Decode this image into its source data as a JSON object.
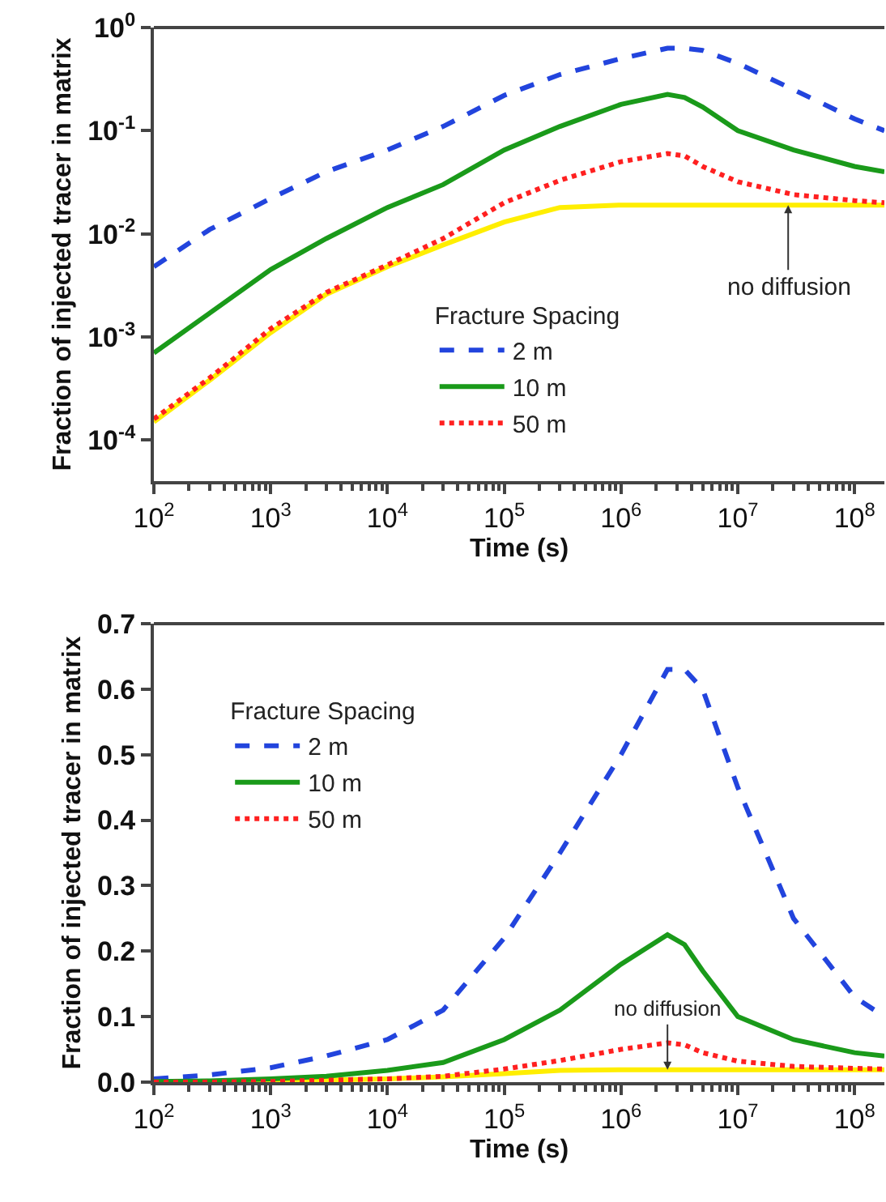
{
  "chart_data": [
    {
      "type": "line",
      "xlabel": "Time (s)",
      "ylabel": "Fraction of injected tracer in matrix",
      "log": "xy",
      "legend": "bottom",
      "legend_title": "Fracture Spacing",
      "xlim": [
        100,
        180000000
      ],
      "xticks": [
        {
          "value": 100,
          "label": "10$^{2}$"
        },
        {
          "value": 1000,
          "label": "10$^{3}$"
        },
        {
          "value": 10000,
          "label": "10$^{4}$"
        },
        {
          "value": 100000,
          "label": "10$^{5}$"
        },
        {
          "value": 1000000,
          "label": "10$^{6}$"
        },
        {
          "value": 10000000,
          "label": "10$^{7}$"
        },
        {
          "value": 100000000,
          "label": "10$^{8}$"
        }
      ],
      "ylim": [
        4e-05,
        1
      ],
      "yticks": [
        {
          "value": 0.0001,
          "label": "10$^{-4}$"
        },
        {
          "value": 0.001,
          "label": "10$^{-3}$"
        },
        {
          "value": 0.01,
          "label": "10$^{-2}$"
        },
        {
          "value": 0.1,
          "label": "10$^{-1}$"
        },
        {
          "value": 1,
          "label": "10$^{0}$"
        }
      ],
      "x": [
        100,
        300,
        1000,
        3000,
        10000,
        30000,
        100000,
        300000,
        1000000,
        2500000,
        3500000,
        5000000,
        10000000,
        30000000,
        100000000,
        180000000
      ],
      "series": [
        {
          "color": "#ffee00",
          "line_style": "solid",
          "values": [
            0.00015,
            0.00038,
            0.0011,
            0.0026,
            0.0048,
            0.0078,
            0.013,
            0.018,
            0.019,
            0.019,
            0.019,
            0.019,
            0.019,
            0.019,
            0.019,
            0.019
          ]
        },
        {
          "name": "2 m",
          "color": "#2244dd",
          "line_style": "dashed",
          "values": [
            0.0048,
            0.011,
            0.022,
            0.04,
            0.065,
            0.11,
            0.22,
            0.35,
            0.5,
            0.63,
            0.63,
            0.6,
            0.45,
            0.25,
            0.13,
            0.1
          ]
        },
        {
          "name": "10 m",
          "color": "#1a9a1a",
          "line_style": "solid",
          "values": [
            0.0007,
            0.0017,
            0.0045,
            0.009,
            0.018,
            0.03,
            0.065,
            0.11,
            0.18,
            0.225,
            0.21,
            0.17,
            0.1,
            0.065,
            0.045,
            0.04
          ]
        },
        {
          "name": "50 m",
          "color": "#ff2020",
          "line_style": "dotted",
          "values": [
            0.00016,
            0.0004,
            0.0012,
            0.0027,
            0.005,
            0.009,
            0.02,
            0.033,
            0.05,
            0.06,
            0.057,
            0.045,
            0.032,
            0.024,
            0.021,
            0.02
          ]
        }
      ],
      "annotations": [
        {
          "text": "no diffusion",
          "x": 27000000,
          "y": 0.019
        }
      ]
    },
    {
      "type": "line",
      "xlabel": "Time (s)",
      "ylabel": "Fraction of injected tracer in matrix",
      "log": "x",
      "legend": "top left",
      "legend_title": "Fracture Spacing",
      "xlim": [
        100,
        180000000
      ],
      "xticks": [
        {
          "value": 100,
          "label": "10$^{2}$"
        },
        {
          "value": 1000,
          "label": "10$^{3}$"
        },
        {
          "value": 10000,
          "label": "10$^{4}$"
        },
        {
          "value": 100000,
          "label": "10$^{5}$"
        },
        {
          "value": 1000000,
          "label": "10$^{6}$"
        },
        {
          "value": 10000000,
          "label": "10$^{7}$"
        },
        {
          "value": 100000000,
          "label": "10$^{8}$"
        }
      ],
      "ylim": [
        0,
        0.7
      ],
      "yticks": [
        {
          "value": 0,
          "label": "0.0"
        },
        0.1,
        0.2,
        0.3,
        0.4,
        0.5,
        0.6,
        0.7
      ],
      "x": [
        100,
        300,
        1000,
        3000,
        10000,
        30000,
        100000,
        300000,
        1000000,
        2500000,
        3500000,
        5000000,
        10000000,
        30000000,
        100000000,
        180000000
      ],
      "series": [
        {
          "color": "#ffee00",
          "line_style": "solid",
          "values": [
            0.0,
            0.0,
            0.001,
            0.003,
            0.005,
            0.008,
            0.013,
            0.018,
            0.019,
            0.019,
            0.019,
            0.019,
            0.019,
            0.019,
            0.019,
            0.019
          ]
        },
        {
          "name": "2 m",
          "color": "#2244dd",
          "line_style": "dashed",
          "values": [
            0.005,
            0.011,
            0.022,
            0.04,
            0.065,
            0.11,
            0.22,
            0.35,
            0.5,
            0.63,
            0.63,
            0.6,
            0.45,
            0.25,
            0.13,
            0.1
          ]
        },
        {
          "name": "10 m",
          "color": "#1a9a1a",
          "line_style": "solid",
          "values": [
            0.001,
            0.002,
            0.005,
            0.009,
            0.018,
            0.03,
            0.065,
            0.11,
            0.18,
            0.225,
            0.21,
            0.17,
            0.1,
            0.065,
            0.045,
            0.04
          ]
        },
        {
          "name": "50 m",
          "color": "#ff2020",
          "line_style": "dotted",
          "values": [
            0.0,
            0.0,
            0.001,
            0.003,
            0.005,
            0.009,
            0.02,
            0.033,
            0.05,
            0.06,
            0.057,
            0.045,
            0.032,
            0.024,
            0.021,
            0.02
          ]
        }
      ],
      "annotations": [
        {
          "text": "no diffusion",
          "x": 2500000,
          "y": 0.019
        }
      ]
    }
  ]
}
